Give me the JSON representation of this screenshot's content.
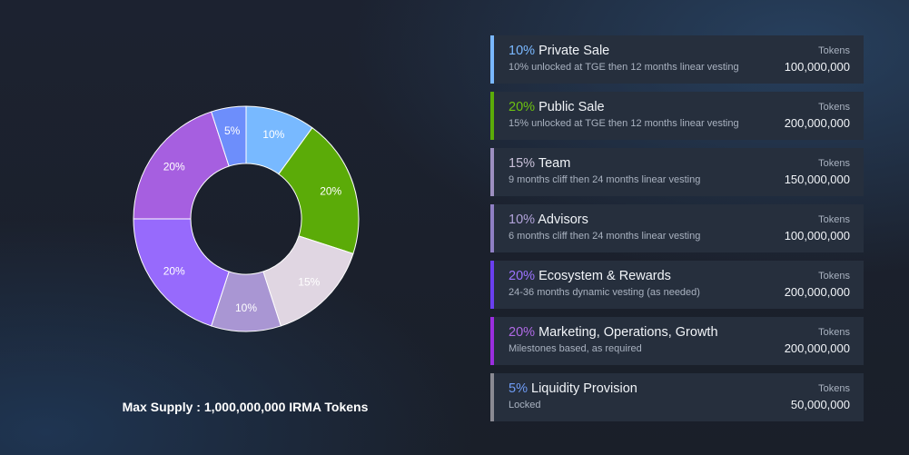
{
  "supply": "Max Supply : 1,000,000,000 IRMA Tokens",
  "tokens_label": "Tokens",
  "chart_data": {
    "type": "pie",
    "donut": true,
    "categories": [
      "Private Sale",
      "Public Sale",
      "Team",
      "Advisors",
      "Ecosystem & Rewards",
      "Marketing, Operations, Growth",
      "Liquidity Provision"
    ],
    "values": [
      10,
      20,
      15,
      10,
      20,
      20,
      5
    ],
    "labels": [
      "10%",
      "20%",
      "15%",
      "10%",
      "20%",
      "20%",
      "5%"
    ],
    "colors": [
      "#78b9ff",
      "#5bab08",
      "#e0d6e2",
      "#a996d3",
      "#976afc",
      "#a65fe0",
      "#6d8efb"
    ]
  },
  "allocations": [
    {
      "pct": "10%",
      "name": "Private Sale",
      "desc": "10% unlocked at TGE then 12 months linear vesting",
      "tokens": "100,000,000",
      "pct_color": "#7ab8ff",
      "border": "#7ab8ff"
    },
    {
      "pct": "20%",
      "name": "Public Sale",
      "desc": "15% unlocked at TGE then 12 months linear vesting",
      "tokens": "200,000,000",
      "pct_color": "#6cc110",
      "border": "#5bab08"
    },
    {
      "pct": "15%",
      "name": "Team",
      "desc": "9 months cliff then 24 months linear vesting",
      "tokens": "150,000,000",
      "pct_color": "#c8c0d8",
      "border": "#9d8fc0"
    },
    {
      "pct": "10%",
      "name": "Advisors",
      "desc": "6 months cliff then 24 months linear vesting",
      "tokens": "100,000,000",
      "pct_color": "#b2a3da",
      "border": "#8f7fc4"
    },
    {
      "pct": "20%",
      "name": "Ecosystem & Rewards",
      "desc": "24-36 months dynamic vesting (as needed)",
      "tokens": "200,000,000",
      "pct_color": "#9c73ff",
      "border": "#6a3ff0"
    },
    {
      "pct": "20%",
      "name": "Marketing, Operations, Growth",
      "desc": "Milestones based, as required",
      "tokens": "200,000,000",
      "pct_color": "#b06ae6",
      "border": "#9b2ee0"
    },
    {
      "pct": "5%",
      "name": "Liquidity Provision",
      "desc": "Locked",
      "tokens": "50,000,000",
      "pct_color": "#6f9cf5",
      "border": "#8a8a92"
    }
  ]
}
